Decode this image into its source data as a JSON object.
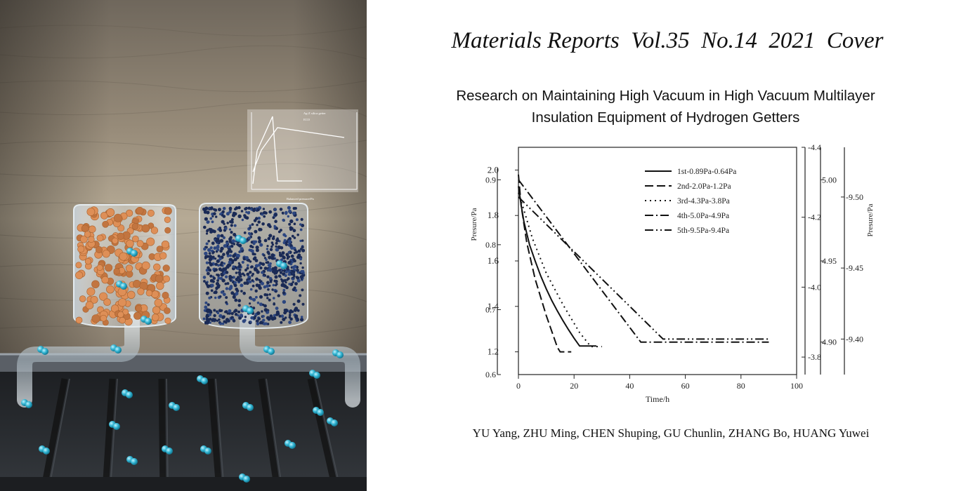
{
  "journal_line": "Materials Reports  Vol.35  No.14  2021  Cover",
  "paper_title": [
    "Research on Maintaining High Vacuum in High Vacuum Multilayer",
    "Insulation Equipment of Hydrogen Getters"
  ],
  "authors": "YU Yang, ZHU Ming, CHEN Shuping, GU Chunlin, ZHANG Bo, HUANG Yuwei",
  "colors": {
    "wall": "#8a7d6c",
    "orange_getter": "#d9894f",
    "blue_getter": "#1f3366",
    "hydrogen": "#2aa8c8",
    "chamber": "#26292d"
  },
  "inset_chart": {
    "legend": [
      "Ag-Z silica getter",
      "ECO"
    ],
    "xlabel": "Balanced pressure/Pa"
  },
  "chart_data": {
    "type": "line",
    "xlabel": "Time/h",
    "ylabel_left": "Presure/Pa",
    "ylabel_right": "Presure/Pa",
    "xlim": [
      0,
      100
    ],
    "x_ticks": [
      "0",
      "20",
      "40",
      "60",
      "80",
      "100"
    ],
    "axes": {
      "a1": {
        "ticks": [
          "1.2",
          "1.4",
          "1.6",
          "1.8",
          "2.0"
        ],
        "range": [
          1.1,
          2.1
        ]
      },
      "a2": {
        "ticks": [
          "0.6",
          "0.7",
          "0.8",
          "0.9"
        ],
        "range": [
          0.6,
          0.95
        ]
      },
      "a3": {
        "ticks": [
          "3.8",
          "4.0",
          "4.2",
          "4.4"
        ],
        "range": [
          3.75,
          4.4
        ]
      },
      "a4": {
        "ticks": [
          "4.90",
          "4.95",
          "5.00"
        ],
        "range": [
          4.88,
          5.02
        ]
      },
      "a5": {
        "ticks": [
          "9.40",
          "9.45",
          "9.50"
        ],
        "range": [
          9.375,
          9.535
        ]
      }
    },
    "series": [
      {
        "name": "1st-0.89Pa-0.64Pa",
        "axis": "a2",
        "dash": "",
        "x": [
          0,
          1,
          2,
          4,
          6,
          8,
          10,
          12,
          14,
          16,
          18,
          20,
          22,
          28
        ],
        "y": [
          0.89,
          0.86,
          0.835,
          0.8,
          0.775,
          0.752,
          0.732,
          0.714,
          0.698,
          0.683,
          0.669,
          0.656,
          0.644,
          0.644
        ]
      },
      {
        "name": "2nd-2.0Pa-1.2Pa",
        "axis": "a1",
        "dash": "12 5",
        "x": [
          0,
          1,
          3,
          6,
          10,
          14,
          15,
          19
        ],
        "y": [
          1.98,
          1.84,
          1.68,
          1.52,
          1.36,
          1.22,
          1.2,
          1.2
        ]
      },
      {
        "name": "3rd-4.3Pa-3.8Pa",
        "axis": "a3",
        "dash": "2 5",
        "x": [
          0,
          2,
          5,
          10,
          16,
          22,
          26,
          30
        ],
        "y": [
          4.27,
          4.22,
          4.14,
          4.04,
          3.95,
          3.87,
          3.83,
          3.83
        ]
      },
      {
        "name": "4th-5.0Pa-4.9Pa",
        "axis": "a4",
        "dash": "12 4 2 4",
        "x": [
          0,
          44,
          52,
          90
        ],
        "y": [
          5.0,
          4.9,
          4.9,
          4.9
        ]
      },
      {
        "name": "5th-9.5Pa-9.4Pa",
        "axis": "a5",
        "dash": "12 4 2 4 2 4",
        "x": [
          0,
          52,
          90
        ],
        "y": [
          9.5,
          9.4,
          9.4
        ]
      }
    ]
  }
}
